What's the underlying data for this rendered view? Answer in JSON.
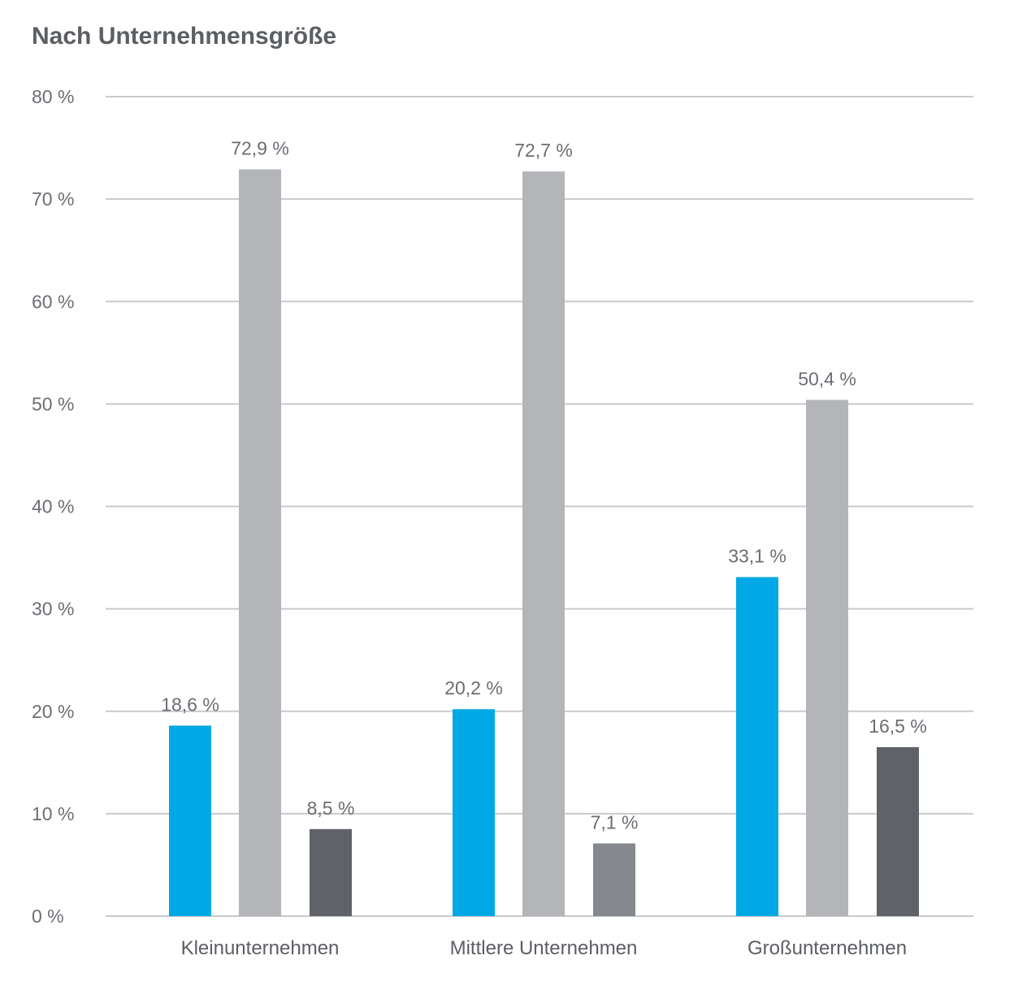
{
  "chart_data": {
    "type": "bar",
    "title": "Nach Unternehmensgröße",
    "categories": [
      "Kleinunternehmen",
      "Mittlere Unternehmen",
      "Großunternehmen"
    ],
    "series": [
      {
        "values": [
          18.6,
          20.2,
          33.1
        ],
        "colors": [
          "#00a9e6",
          "#00a9e6",
          "#00a9e6"
        ]
      },
      {
        "values": [
          72.9,
          72.7,
          50.4
        ],
        "colors": [
          "#b4b5b8",
          "#b4b5b8",
          "#b4b5b8"
        ]
      },
      {
        "values": [
          8.5,
          7.1,
          16.5
        ],
        "colors": [
          "#5f6369",
          "#85888c",
          "#5f6369"
        ]
      }
    ],
    "data_labels": [
      [
        "18,6 %",
        "20,2 %",
        "33,1 %"
      ],
      [
        "72,9 %",
        "72,7 %",
        "50,4 %"
      ],
      [
        "8,5 %",
        "7,1 %",
        "16,5 %"
      ]
    ],
    "ylim": [
      0,
      80
    ],
    "yticks": [
      0,
      10,
      20,
      30,
      40,
      50,
      60,
      70,
      80
    ],
    "ytick_labels": [
      "0 %",
      "10 %",
      "20 %",
      "30 %",
      "40 %",
      "50 %",
      "60 %",
      "70 %",
      "80 %"
    ],
    "xlabel": "",
    "ylabel": "",
    "grid": true,
    "legend": false,
    "gridline_color": "#c9cacc"
  }
}
